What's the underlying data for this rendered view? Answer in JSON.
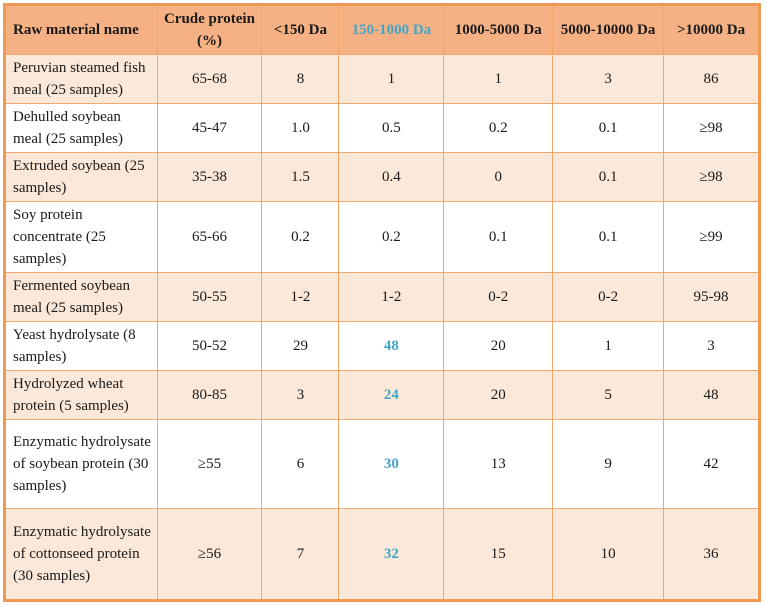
{
  "colors": {
    "header_bg": "#F5B183",
    "row_peach_bg": "#FBE8D9",
    "row_white_bg": "#FFFFFF",
    "border_outer": "#EE9A54",
    "border_inner": "#F2A669",
    "highlight_blue": "#45A5C6",
    "text": "#1A1A1A"
  },
  "table": {
    "columns": [
      {
        "label": "Raw material name",
        "highlight": false
      },
      {
        "label": "Crude protein (%)",
        "highlight": false
      },
      {
        "label": "<150 Da",
        "highlight": false
      },
      {
        "label": "150-1000 Da",
        "highlight": true
      },
      {
        "label": "1000-5000 Da",
        "highlight": false
      },
      {
        "label": "5000-10000 Da",
        "highlight": false
      },
      {
        "label": ">10000 Da",
        "highlight": false
      }
    ],
    "rows": [
      {
        "cells": [
          "Peruvian steamed fish meal (25 samples)",
          "65-68",
          "8",
          "1",
          "1",
          "3",
          "86"
        ],
        "blue_mid": false
      },
      {
        "cells": [
          "Dehulled soybean meal (25 samples)",
          "45-47",
          "1.0",
          "0.5",
          "0.2",
          "0.1",
          "≥98"
        ],
        "blue_mid": false
      },
      {
        "cells": [
          "Extruded soybean (25 samples)",
          "35-38",
          "1.5",
          "0.4",
          "0",
          "0.1",
          "≥98"
        ],
        "blue_mid": false
      },
      {
        "cells": [
          "Soy protein concentrate (25 samples)",
          "65-66",
          "0.2",
          "0.2",
          "0.1",
          "0.1",
          "≥99"
        ],
        "blue_mid": false
      },
      {
        "cells": [
          "Fermented soybean meal (25 samples)",
          "50-55",
          "1-2",
          "1-2",
          "0-2",
          "0-2",
          "95-98"
        ],
        "blue_mid": false
      },
      {
        "cells": [
          "Yeast hydrolysate (8 samples)",
          "50-52",
          "29",
          "48",
          "20",
          "1",
          "3"
        ],
        "blue_mid": true
      },
      {
        "cells": [
          "Hydrolyzed wheat protein (5 samples)",
          "80-85",
          "3",
          "24",
          "20",
          "5",
          "48"
        ],
        "blue_mid": true
      },
      {
        "cells": [
          "Enzymatic hydrolysate of soybean protein (30 samples)",
          "≥55",
          "6",
          "30",
          "13",
          "9",
          "42"
        ],
        "blue_mid": true
      },
      {
        "cells": [
          "Enzymatic hydrolysate of cottonseed protein (30 samples)",
          "≥56",
          "7",
          "32",
          "15",
          "10",
          "36"
        ],
        "blue_mid": true
      }
    ]
  }
}
